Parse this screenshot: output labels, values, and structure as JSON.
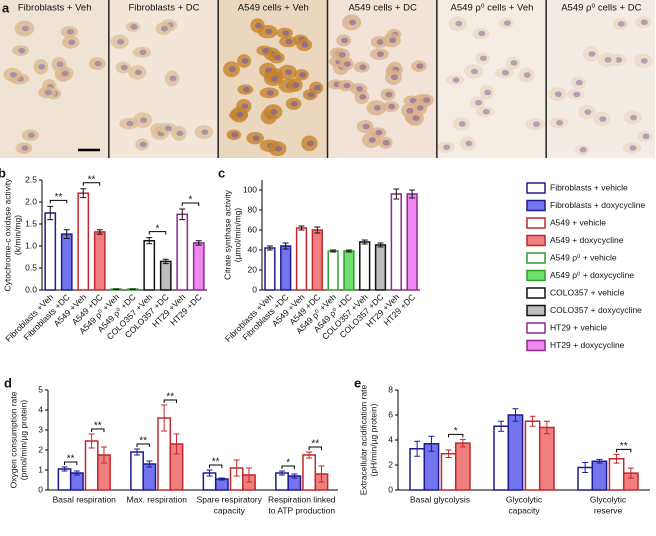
{
  "figure": {
    "panel_a": {
      "letter": "a",
      "images": [
        "Fibroblasts + Veh",
        "Fibroblasts + DC",
        "A549 cells + Veh",
        "A549 cells + DC",
        "A549 ρ⁰ cells + Veh",
        "A549 ρ⁰ cells + DC"
      ]
    }
  },
  "legend": {
    "entries": [
      {
        "label": "Fibroblasts + vehicle",
        "color": "#1c1c8f",
        "fill": "#ffffff"
      },
      {
        "label": "Fibroblasts + doxycycline",
        "color": "#1c1c8f",
        "fill": "#7474ee"
      },
      {
        "label": "A549 + vehicle",
        "color": "#c0282d",
        "fill": "#ffffff"
      },
      {
        "label": "A549 + doxycycline",
        "color": "#c0282d",
        "fill": "#f08080"
      },
      {
        "label": "A549 ρ⁰ + vehicle",
        "color": "#2f9e2f",
        "fill": "#ffffff"
      },
      {
        "label": "A549 ρ⁰ + doxycycline",
        "color": "#2f9e2f",
        "fill": "#6ee06e"
      },
      {
        "label": "COLO357 + vehicle",
        "color": "#111111",
        "fill": "#ffffff"
      },
      {
        "label": "COLO357 + doxycycline",
        "color": "#111111",
        "fill": "#bdbdbd"
      },
      {
        "label": "HT29 + vehicle",
        "color": "#8a2a8a",
        "fill": "#ffffff"
      },
      {
        "label": "HT29 + doxycycline",
        "color": "#8a2a8a",
        "fill": "#ee88ee"
      }
    ]
  },
  "chart_data": [
    {
      "type": "bar",
      "letter": "b",
      "ylabel": [
        "Cytochrome-c oxidase activity",
        "(k/min/mg)"
      ],
      "categories": [
        "Fibroblasts +Veh",
        "Fibroblasts +DC",
        "A549 +Veh",
        "A549 +DC",
        "A549 ρ⁰ +Veh",
        "A549 ρ⁰ +DC",
        "COLO357 +Veh",
        "COLO357 +DC",
        "HT29 +Veh",
        "HT29 +DC"
      ],
      "values": [
        1.75,
        1.27,
        2.2,
        1.32,
        0.02,
        0.02,
        1.12,
        0.65,
        1.72,
        1.07
      ],
      "errors": [
        0.15,
        0.1,
        0.1,
        0.05,
        0.005,
        0.005,
        0.07,
        0.05,
        0.12,
        0.05
      ],
      "colors": [
        "#1c1c8f",
        "#1c1c8f",
        "#c0282d",
        "#c0282d",
        "#2f9e2f",
        "#2f9e2f",
        "#111111",
        "#111111",
        "#8a2a8a",
        "#8a2a8a"
      ],
      "fills": [
        "#ffffff",
        "#7474ee",
        "#ffffff",
        "#f08080",
        "#ffffff",
        "#6ee06e",
        "#ffffff",
        "#bdbdbd",
        "#ffffff",
        "#ee88ee"
      ],
      "ylim": [
        0,
        2.5
      ],
      "yticks": [
        {
          "value": 0,
          "label": "0.0"
        },
        0.5,
        {
          "value": 1,
          "label": "1.0"
        },
        1.5,
        {
          "value": 2,
          "label": "2.0"
        },
        2.5
      ],
      "annotations": [
        {
          "text": "**",
          "pair": [
            0,
            1
          ]
        },
        {
          "text": "**",
          "pair": [
            2,
            3
          ]
        },
        {
          "text": "*",
          "pair": [
            6,
            7
          ]
        },
        {
          "text": "*",
          "pair": [
            8,
            9
          ]
        }
      ]
    },
    {
      "type": "bar",
      "letter": "c",
      "ylabel": [
        "Citrate synthase activity",
        "(µmol/min/mg)"
      ],
      "categories": [
        "Fibroblasts +Veh",
        "Fibroblasts +DC",
        "A549 +Veh",
        "A549 +DC",
        "A549 ρ⁰ +Veh",
        "A549 ρ⁰ +DC",
        "COLO357 +Veh",
        "COLO357 +DC",
        "HT29 +Veh",
        "HT29 +DC"
      ],
      "values": [
        42,
        44,
        62,
        60,
        39,
        39,
        48,
        45,
        96,
        96
      ],
      "errors": [
        2,
        3,
        2,
        3,
        1,
        1,
        2,
        2,
        5,
        4
      ],
      "colors": [
        "#1c1c8f",
        "#1c1c8f",
        "#c0282d",
        "#c0282d",
        "#2f9e2f",
        "#2f9e2f",
        "#111111",
        "#111111",
        "#8a2a8a",
        "#8a2a8a"
      ],
      "fills": [
        "#ffffff",
        "#7474ee",
        "#ffffff",
        "#f08080",
        "#ffffff",
        "#6ee06e",
        "#ffffff",
        "#bdbdbd",
        "#ffffff",
        "#ee88ee"
      ],
      "ylim": [
        0,
        110
      ],
      "yticks": [
        0,
        20,
        40,
        60,
        80,
        100
      ],
      "annotations": []
    },
    {
      "type": "grouped_bar",
      "letter": "d",
      "ylabel": [
        "Oxygen consumption rate",
        "(pmol/min/µg protein)"
      ],
      "categories": [
        [
          "Basal respiration"
        ],
        [
          "Max. respiration"
        ],
        [
          "Spare respiratory",
          "capacity"
        ],
        [
          "Respiration linked",
          "to ATP production"
        ]
      ],
      "series": [
        {
          "color": "#1c1c8f",
          "fill": "#ffffff",
          "values": [
            1.05,
            1.9,
            0.85,
            0.85
          ],
          "errors": [
            0.1,
            0.15,
            0.15,
            0.1
          ]
        },
        {
          "color": "#1c1c8f",
          "fill": "#7474ee",
          "values": [
            0.85,
            1.3,
            0.55,
            0.7
          ],
          "errors": [
            0.1,
            0.15,
            0.05,
            0.1
          ]
        },
        {
          "color": "#c0282d",
          "fill": "#ffffff",
          "values": [
            2.45,
            3.6,
            1.1,
            1.75
          ],
          "errors": [
            0.35,
            0.65,
            0.4,
            0.15
          ]
        },
        {
          "color": "#c0282d",
          "fill": "#f08080",
          "values": [
            1.75,
            2.3,
            0.75,
            0.8
          ],
          "errors": [
            0.4,
            0.5,
            0.35,
            0.4
          ]
        }
      ],
      "ylim": [
        0,
        5
      ],
      "yticks": [
        0,
        1,
        2,
        3,
        4,
        5
      ],
      "annotations": [
        {
          "text": "**",
          "group": 0,
          "pair": [
            0,
            1
          ]
        },
        {
          "text": "**",
          "group": 0,
          "pair": [
            2,
            3
          ]
        },
        {
          "text": "**",
          "group": 1,
          "pair": [
            0,
            1
          ]
        },
        {
          "text": "**",
          "group": 1,
          "pair": [
            2,
            3
          ]
        },
        {
          "text": "**",
          "group": 2,
          "pair": [
            0,
            1
          ]
        },
        {
          "text": "*",
          "group": 3,
          "pair": [
            0,
            1
          ]
        },
        {
          "text": "**",
          "group": 3,
          "pair": [
            2,
            3
          ]
        }
      ]
    },
    {
      "type": "grouped_bar",
      "letter": "e",
      "ylabel": [
        "Extracellular acidification rate",
        "(pH/min/µg protein)"
      ],
      "categories": [
        [
          "Basal glycolysis"
        ],
        [
          "Glycolytic",
          "capacity"
        ],
        [
          "Glycolytic",
          "reserve"
        ]
      ],
      "series": [
        {
          "color": "#1c1c8f",
          "fill": "#ffffff",
          "values": [
            3.3,
            5.1,
            1.8
          ],
          "errors": [
            0.6,
            0.4,
            0.4
          ]
        },
        {
          "color": "#1c1c8f",
          "fill": "#7474ee",
          "values": [
            3.7,
            6.0,
            2.3
          ],
          "errors": [
            0.6,
            0.5,
            0.15
          ]
        },
        {
          "color": "#c0282d",
          "fill": "#ffffff",
          "values": [
            2.9,
            5.5,
            2.5
          ],
          "errors": [
            0.3,
            0.4,
            0.35
          ]
        },
        {
          "color": "#c0282d",
          "fill": "#f08080",
          "values": [
            3.75,
            5.0,
            1.35
          ],
          "errors": [
            0.3,
            0.5,
            0.4
          ]
        }
      ],
      "ylim": [
        0,
        8
      ],
      "yticks": [
        0,
        2,
        4,
        6,
        8
      ],
      "annotations": [
        {
          "text": "*",
          "group": 0,
          "pair": [
            2,
            3
          ]
        },
        {
          "text": "**",
          "group": 2,
          "pair": [
            2,
            3
          ]
        }
      ]
    }
  ]
}
